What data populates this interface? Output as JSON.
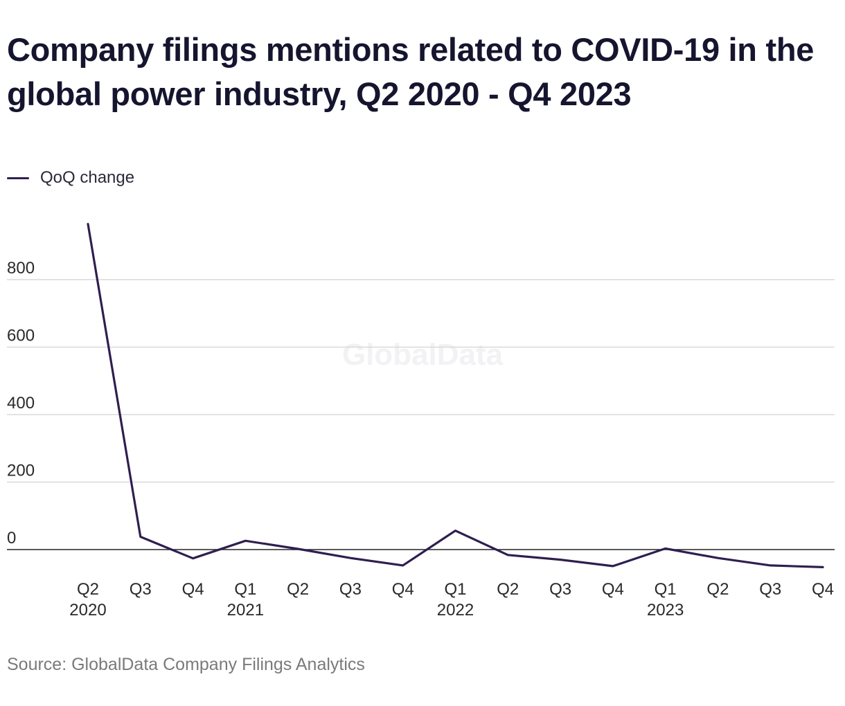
{
  "title": "Company filings mentions related to COVID-19 in the global power industry, Q2 2020 - Q4 2023",
  "source": "Source: GlobalData Company Filings Analytics",
  "watermark": "GlobalData",
  "chart_data": {
    "type": "line",
    "x": [
      "Q2 2020",
      "Q3 2020",
      "Q4 2020",
      "Q1 2021",
      "Q2 2021",
      "Q3 2021",
      "Q4 2021",
      "Q1 2022",
      "Q2 2022",
      "Q3 2022",
      "Q4 2022",
      "Q1 2023",
      "Q2 2023",
      "Q3 2023",
      "Q4 2023"
    ],
    "x_tick_labels": [
      {
        "quarter": "Q2",
        "year": "2020"
      },
      {
        "quarter": "Q3",
        "year": ""
      },
      {
        "quarter": "Q4",
        "year": ""
      },
      {
        "quarter": "Q1",
        "year": "2021"
      },
      {
        "quarter": "Q2",
        "year": ""
      },
      {
        "quarter": "Q3",
        "year": ""
      },
      {
        "quarter": "Q4",
        "year": ""
      },
      {
        "quarter": "Q1",
        "year": "2022"
      },
      {
        "quarter": "Q2",
        "year": ""
      },
      {
        "quarter": "Q3",
        "year": ""
      },
      {
        "quarter": "Q4",
        "year": ""
      },
      {
        "quarter": "Q1",
        "year": "2023"
      },
      {
        "quarter": "Q2",
        "year": ""
      },
      {
        "quarter": "Q3",
        "year": ""
      },
      {
        "quarter": "Q4",
        "year": ""
      }
    ],
    "series": [
      {
        "name": "QoQ change",
        "color": "#2e1f4f",
        "values": [
          965,
          38,
          -26,
          26,
          2,
          -25,
          -47,
          56,
          -16,
          -30,
          -49,
          3,
          -25,
          -47,
          -52
        ]
      }
    ],
    "yticks": [
      0,
      200,
      400,
      600,
      800
    ],
    "ylim": [
      -60,
      980
    ],
    "grid": true,
    "legend_position": "top-left",
    "colors": {
      "line": "#2e1f4f",
      "grid": "#d9d9d9",
      "zero_line": "#222222"
    }
  }
}
